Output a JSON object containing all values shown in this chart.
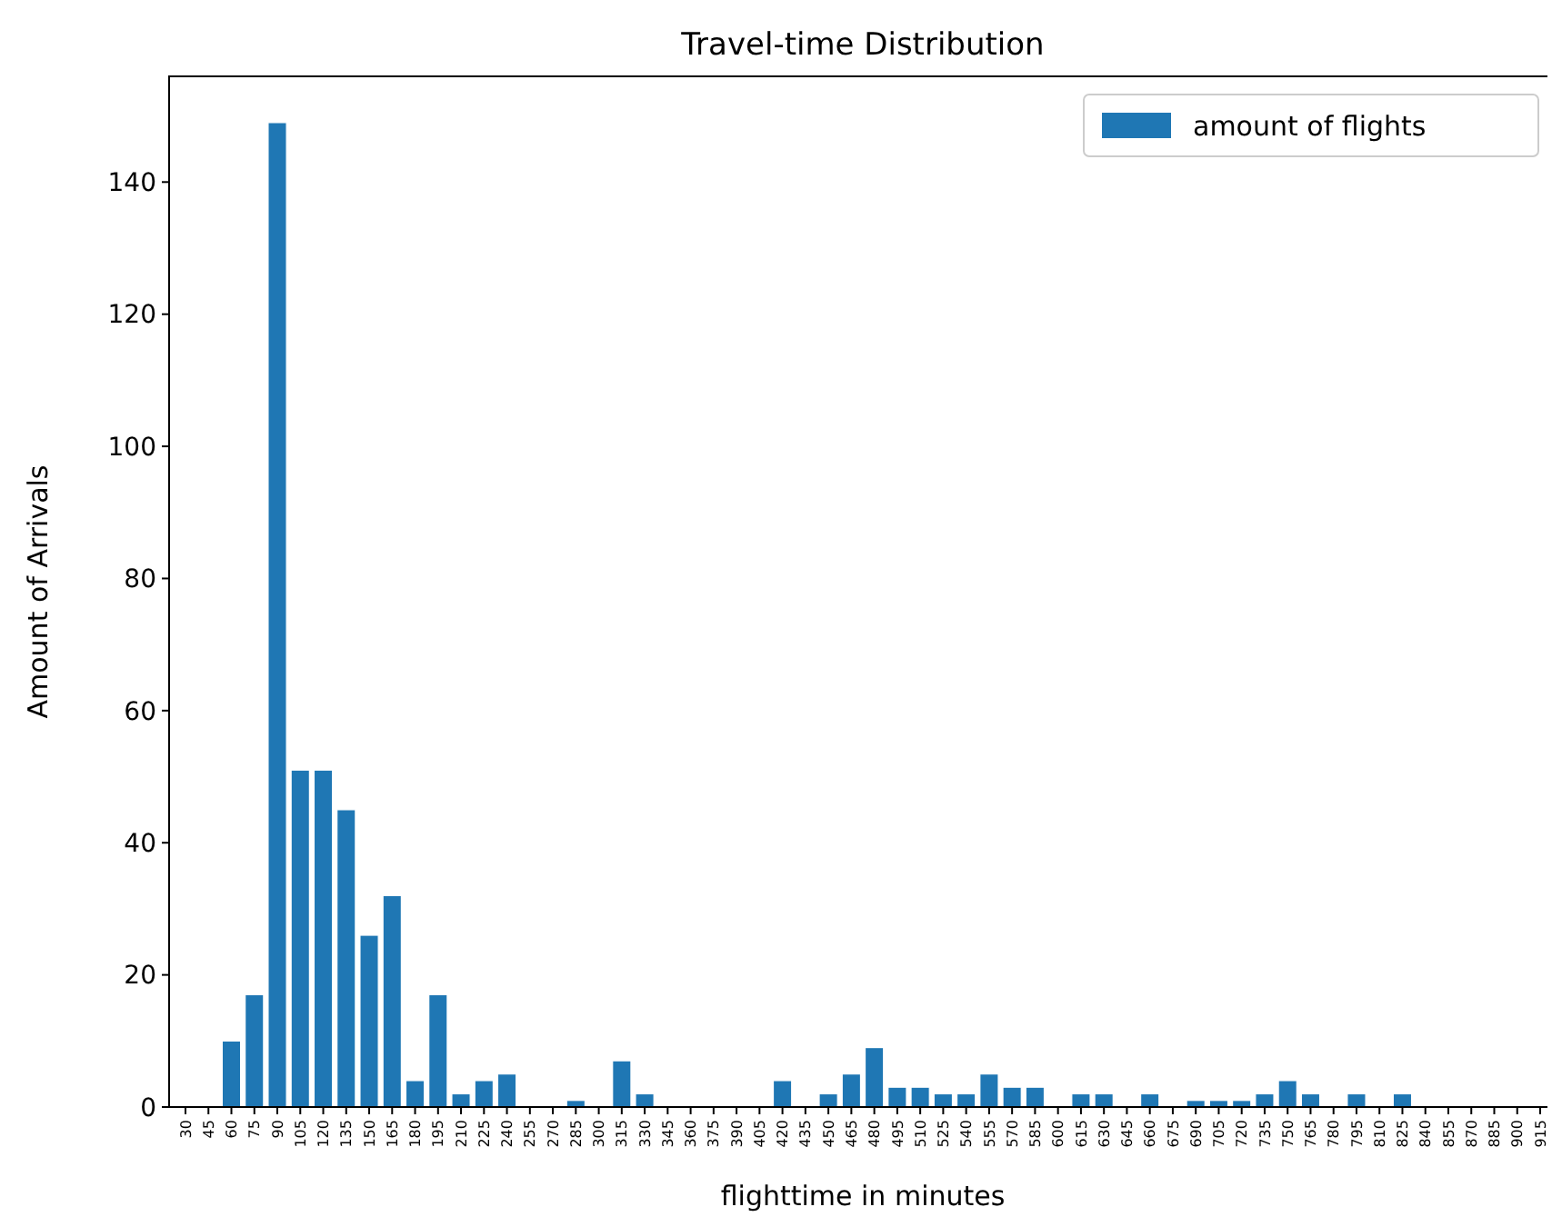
{
  "chart_data": {
    "type": "bar",
    "title": "Travel-time Distribution",
    "xlabel": "flighttime in minutes",
    "ylabel": "Amount of Arrivals",
    "categories": [
      "30",
      "45",
      "60",
      "75",
      "90",
      "105",
      "120",
      "135",
      "150",
      "165",
      "180",
      "195",
      "210",
      "225",
      "240",
      "255",
      "270",
      "285",
      "300",
      "315",
      "330",
      "345",
      "360",
      "375",
      "390",
      "405",
      "420",
      "435",
      "450",
      "465",
      "480",
      "495",
      "510",
      "525",
      "540",
      "555",
      "570",
      "585",
      "600",
      "615",
      "630",
      "645",
      "660",
      "675",
      "690",
      "705",
      "720",
      "735",
      "750",
      "765",
      "780",
      "795",
      "810",
      "825",
      "840",
      "855",
      "870",
      "885",
      "900",
      "915"
    ],
    "series": [
      {
        "name": "amount of flights",
        "color": "#1f77b4",
        "values": [
          0,
          0,
          10,
          17,
          149,
          51,
          51,
          45,
          26,
          32,
          4,
          17,
          2,
          4,
          5,
          0,
          0,
          1,
          0,
          7,
          2,
          0,
          0,
          0,
          0,
          0,
          4,
          0,
          2,
          5,
          9,
          3,
          3,
          2,
          2,
          5,
          3,
          3,
          0,
          2,
          2,
          0,
          2,
          0,
          1,
          1,
          1,
          2,
          4,
          2,
          0,
          2,
          0,
          2,
          0,
          0,
          0,
          0,
          0,
          0
        ]
      }
    ],
    "ylim": [
      0,
      156
    ],
    "yticks": [
      0,
      20,
      40,
      60,
      80,
      100,
      120,
      140
    ],
    "legend": "top right"
  }
}
